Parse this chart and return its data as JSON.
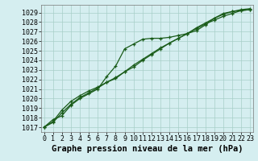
{
  "title": "Graphe pression niveau de la mer (hPa)",
  "xlim": [
    -0.3,
    23.3
  ],
  "ylim": [
    1016.5,
    1029.8
  ],
  "yticks": [
    1017,
    1018,
    1019,
    1020,
    1021,
    1022,
    1023,
    1024,
    1025,
    1026,
    1027,
    1028,
    1029
  ],
  "xticks": [
    0,
    1,
    2,
    3,
    4,
    5,
    6,
    7,
    8,
    9,
    10,
    11,
    12,
    13,
    14,
    15,
    16,
    17,
    18,
    19,
    20,
    21,
    22,
    23
  ],
  "bg_color": "#d5eef0",
  "grid_color": "#a8cfc8",
  "line_color": "#1a5c1a",
  "line1_x": [
    0,
    1,
    2,
    3,
    4,
    5,
    6,
    7,
    8,
    9,
    10,
    11,
    12,
    13,
    14,
    15,
    16,
    17,
    18,
    19,
    20,
    21,
    22,
    23
  ],
  "line1_y": [
    1017.0,
    1017.8,
    1018.2,
    1019.3,
    1020.0,
    1020.5,
    1021.0,
    1022.3,
    1023.4,
    1025.2,
    1025.7,
    1026.2,
    1026.3,
    1026.3,
    1026.4,
    1026.6,
    1026.8,
    1027.1,
    1027.7,
    1028.4,
    1028.9,
    1029.1,
    1029.2,
    1029.3
  ],
  "line2_x": [
    0,
    1,
    2,
    3,
    4,
    5,
    6,
    7,
    8,
    9,
    10,
    11,
    12,
    13,
    14,
    15,
    16,
    17,
    18,
    19,
    20,
    21,
    22,
    23
  ],
  "line2_y": [
    1017.0,
    1017.5,
    1018.5,
    1019.4,
    1020.1,
    1020.6,
    1021.1,
    1021.7,
    1022.2,
    1022.8,
    1023.5,
    1024.1,
    1024.7,
    1025.3,
    1025.8,
    1026.3,
    1026.8,
    1027.3,
    1027.8,
    1028.2,
    1028.6,
    1028.9,
    1029.2,
    1029.3
  ],
  "line3_x": [
    0,
    1,
    2,
    3,
    4,
    5,
    6,
    7,
    8,
    9,
    10,
    11,
    12,
    13,
    14,
    15,
    16,
    17,
    18,
    19,
    20,
    21,
    22,
    23
  ],
  "line3_y": [
    1017.0,
    1017.6,
    1018.8,
    1019.7,
    1020.3,
    1020.8,
    1021.2,
    1021.7,
    1022.1,
    1022.8,
    1023.3,
    1024.0,
    1024.6,
    1025.2,
    1025.8,
    1026.3,
    1026.8,
    1027.4,
    1027.9,
    1028.4,
    1028.8,
    1029.1,
    1029.3,
    1029.4
  ],
  "marker": "+",
  "marker_size": 3.5,
  "marker_lw": 0.9,
  "line_width": 0.9,
  "title_fontsize": 7.5,
  "tick_fontsize": 6.0
}
